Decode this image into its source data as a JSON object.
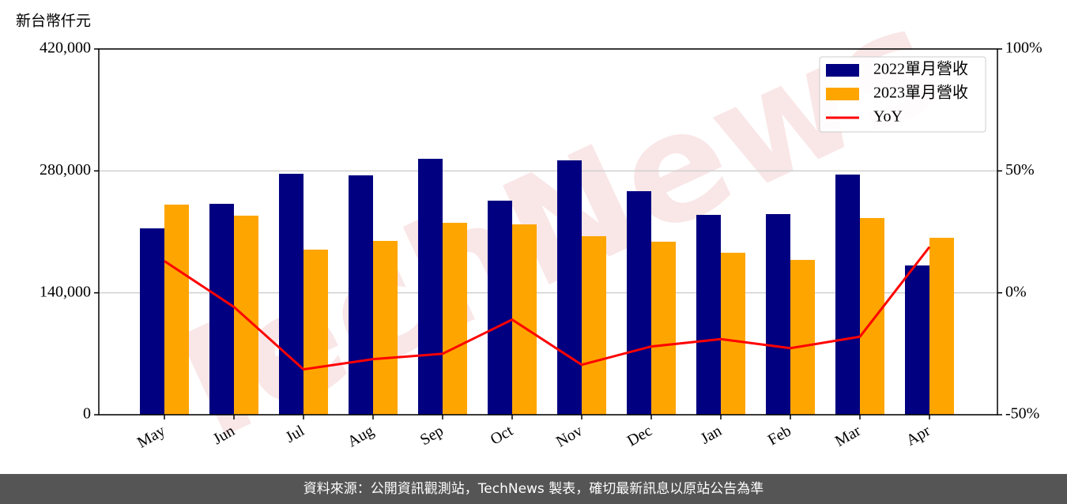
{
  "chart_data": {
    "type": "bar",
    "watermark": "TechNews",
    "y_label": "新台幣仟元",
    "categories": [
      "May",
      "Jun",
      "Jul",
      "Aug",
      "Sep",
      "Oct",
      "Nov",
      "Dec",
      "Jan",
      "Feb",
      "Mar",
      "Apr"
    ],
    "series": [
      {
        "name": "2022單月營收",
        "color": "#000080",
        "values": [
          214000,
          242200,
          276700,
          274900,
          293900,
          245800,
          292100,
          256700,
          229500,
          230400,
          275800,
          171400
        ]
      },
      {
        "name": "2023單月營收",
        "color": "#ffa500",
        "values": [
          241300,
          228600,
          189600,
          199600,
          220400,
          218600,
          205000,
          198700,
          186000,
          177800,
          225900,
          203200
        ]
      },
      {
        "name": "YoY",
        "type": "line",
        "axis": "y2",
        "color": "#ff0000",
        "values": [
          13,
          -5.8,
          -31.4,
          -27.2,
          -25,
          -11,
          -29.5,
          -22,
          -19,
          -22.7,
          -18,
          18.8
        ]
      }
    ],
    "ylim": [
      0,
      420000
    ],
    "yticks": [
      0,
      {
        "value": 140000,
        "label": "140,000"
      },
      {
        "value": 280000,
        "label": "280,000"
      },
      {
        "value": 420000,
        "label": "420,000"
      }
    ],
    "y2lim": [
      -50,
      100
    ],
    "y2ticks": [
      {
        "value": -50,
        "label": "-50%"
      },
      {
        "value": 0,
        "label": "0%"
      },
      {
        "value": 50,
        "label": "50%"
      },
      {
        "value": 100,
        "label": "100%"
      }
    ],
    "grid": true,
    "legend": "upper right",
    "source": "資料來源：公開資訊觀測站，TechNews 製表，確切最新訊息以原站公告為準"
  }
}
